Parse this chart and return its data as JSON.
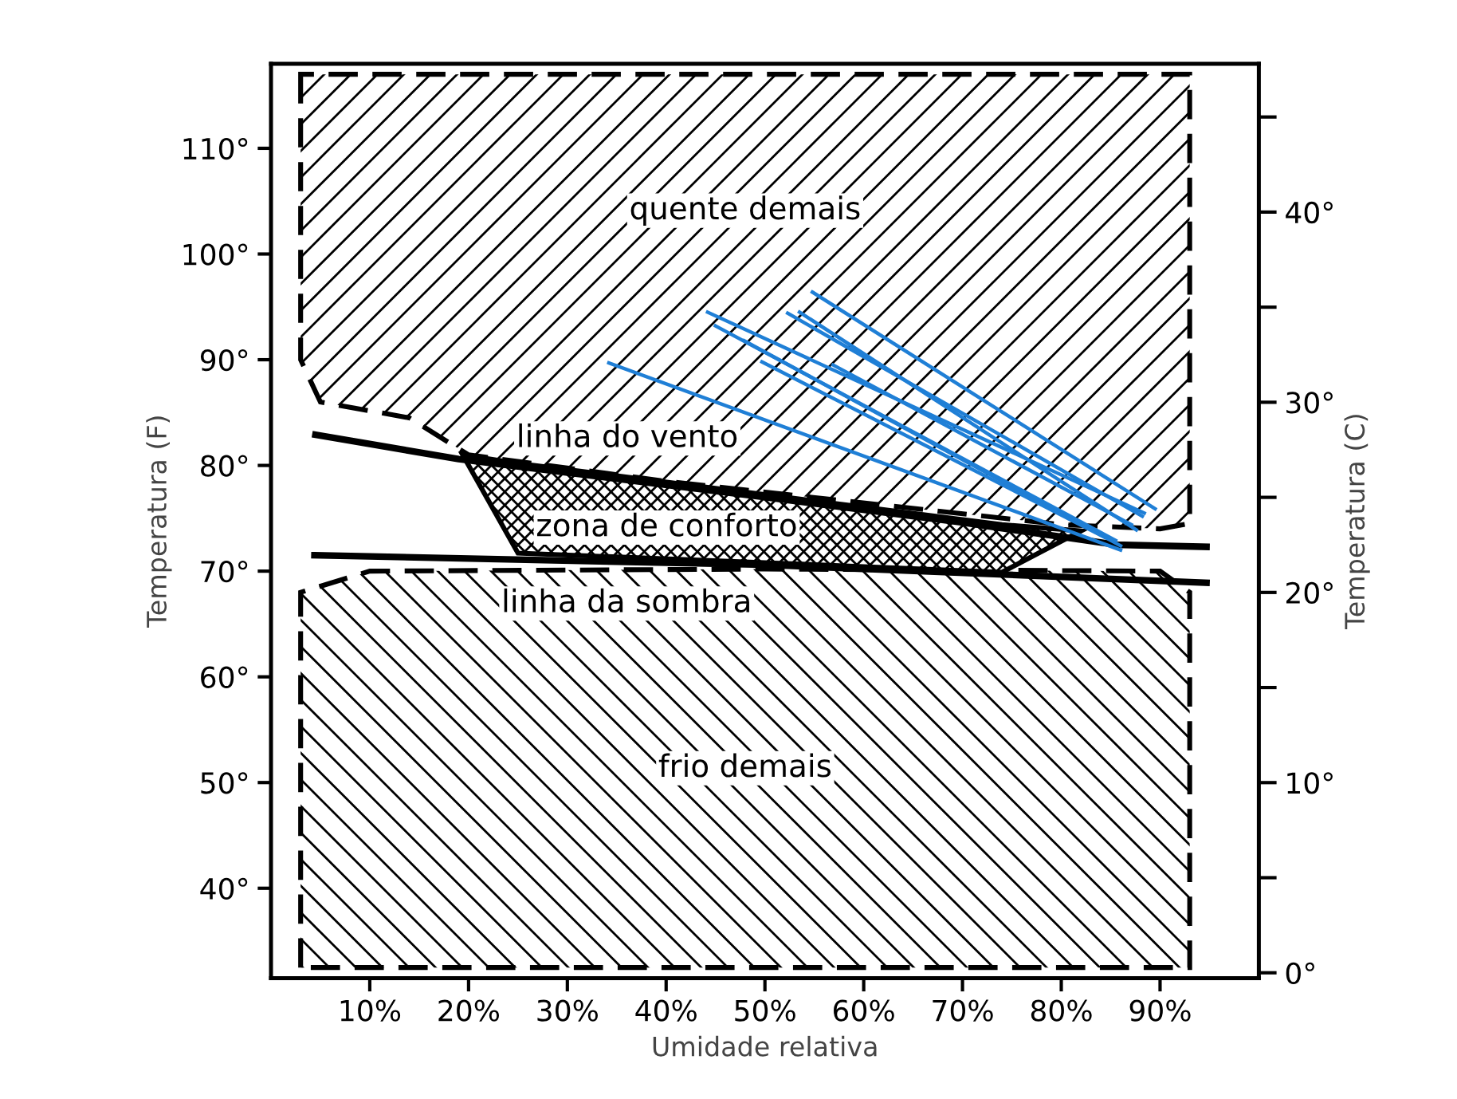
{
  "chart_data": {
    "type": "line",
    "xlabel": "Umidade relativa",
    "ylabel": "Temperatura (F)",
    "y2label": "Temperatura (C)",
    "xlim": [
      0,
      100
    ],
    "ylim": [
      31.5,
      118
    ],
    "y2lim": [
      -0.28,
      47.8
    ],
    "xticks": [
      {
        "value": 10,
        "label": "10%"
      },
      {
        "value": 20,
        "label": "20%"
      },
      {
        "value": 30,
        "label": "30%"
      },
      {
        "value": 40,
        "label": "40%"
      },
      {
        "value": 50,
        "label": "50%"
      },
      {
        "value": 60,
        "label": "60%"
      },
      {
        "value": 70,
        "label": "70%"
      },
      {
        "value": 80,
        "label": "80%"
      },
      {
        "value": 90,
        "label": "90%"
      }
    ],
    "yticks": [
      {
        "value": 40,
        "label": "40°"
      },
      {
        "value": 50,
        "label": "50°"
      },
      {
        "value": 60,
        "label": "60°"
      },
      {
        "value": 70,
        "label": "70°"
      },
      {
        "value": 80,
        "label": "80°"
      },
      {
        "value": 90,
        "label": "90°"
      },
      {
        "value": 100,
        "label": "100°"
      },
      {
        "value": 110,
        "label": "110°"
      }
    ],
    "y2ticks": [
      {
        "value": 0,
        "label": "0°"
      },
      {
        "value": 5,
        "label": null
      },
      {
        "value": 10,
        "label": "10°"
      },
      {
        "value": 15,
        "label": null
      },
      {
        "value": 20,
        "label": "20°"
      },
      {
        "value": 25,
        "label": null
      },
      {
        "value": 30,
        "label": "30°"
      },
      {
        "value": 35,
        "label": null
      },
      {
        "value": 40,
        "label": "40°"
      },
      {
        "value": 45,
        "label": null
      }
    ],
    "grid": false,
    "legend": false,
    "series": [
      {
        "name": "quente demais",
        "type": "area",
        "color": "#000000",
        "line_style": "dashed",
        "x": [
          3,
          3,
          5,
          14,
          20,
          40,
          80,
          90,
          93,
          93,
          3
        ],
        "values": [
          117,
          90,
          86,
          84.5,
          81,
          78.5,
          74.4,
          74,
          74.5,
          117,
          117
        ]
      },
      {
        "name": "frio demais",
        "type": "area",
        "color": "#000000",
        "line_style": "dashed",
        "x": [
          3,
          3,
          10,
          50,
          90,
          93,
          93,
          3
        ],
        "values": [
          32.5,
          68,
          70,
          70.2,
          70,
          68,
          32.5,
          32.5
        ]
      },
      {
        "name": "zona de conforto",
        "type": "area",
        "color": "#000000",
        "line_style": "solid",
        "x": [
          19.4,
          25,
          50,
          74,
          82,
          74,
          25,
          19.4
        ],
        "values": [
          81,
          71.7,
          70.8,
          69.9,
          73.8,
          74.4,
          80.2,
          81
        ]
      },
      {
        "name": "linha do vento",
        "color": "#000000",
        "x": [
          4.5,
          19,
          50,
          70,
          85.5,
          94.7
        ],
        "values": [
          82.9,
          80.6,
          77,
          74.6,
          72.5,
          72.3
        ]
      },
      {
        "name": "linha da sombra",
        "color": "#000000",
        "x": [
          4.4,
          50,
          94.7
        ],
        "values": [
          71.5,
          70.6,
          68.9
        ]
      },
      {
        "color": "#1f7fd6",
        "x": [
          34.2,
          86
        ],
        "values": [
          89.7,
          72.0
        ]
      },
      {
        "color": "#1f7fd6",
        "x": [
          44.2,
          88.4
        ],
        "values": [
          94.5,
          75.5
        ]
      },
      {
        "color": "#1f7fd6",
        "x": [
          54.8,
          89.5
        ],
        "values": [
          96.4,
          75.9
        ]
      },
      {
        "color": "#1f7fd6",
        "x": [
          52.3,
          88.2
        ],
        "values": [
          94.4,
          75.2
        ]
      },
      {
        "color": "#1f7fd6",
        "x": [
          53.5,
          87.6
        ],
        "values": [
          94.5,
          73.9
        ]
      },
      {
        "color": "#1f7fd6",
        "x": [
          45.0,
          85.5
        ],
        "values": [
          93.2,
          72.9
        ]
      },
      {
        "color": "#1f7fd6",
        "x": [
          47.9,
          86
        ],
        "values": [
          91.8,
          72.4
        ]
      },
      {
        "color": "#1f7fd6",
        "x": [
          49.7,
          84.4
        ],
        "values": [
          89.8,
          73.2
        ]
      },
      {
        "color": "#1f7fd6",
        "x": [
          56.9,
          87.1
        ],
        "values": [
          89.5,
          74.4
        ]
      }
    ]
  }
}
